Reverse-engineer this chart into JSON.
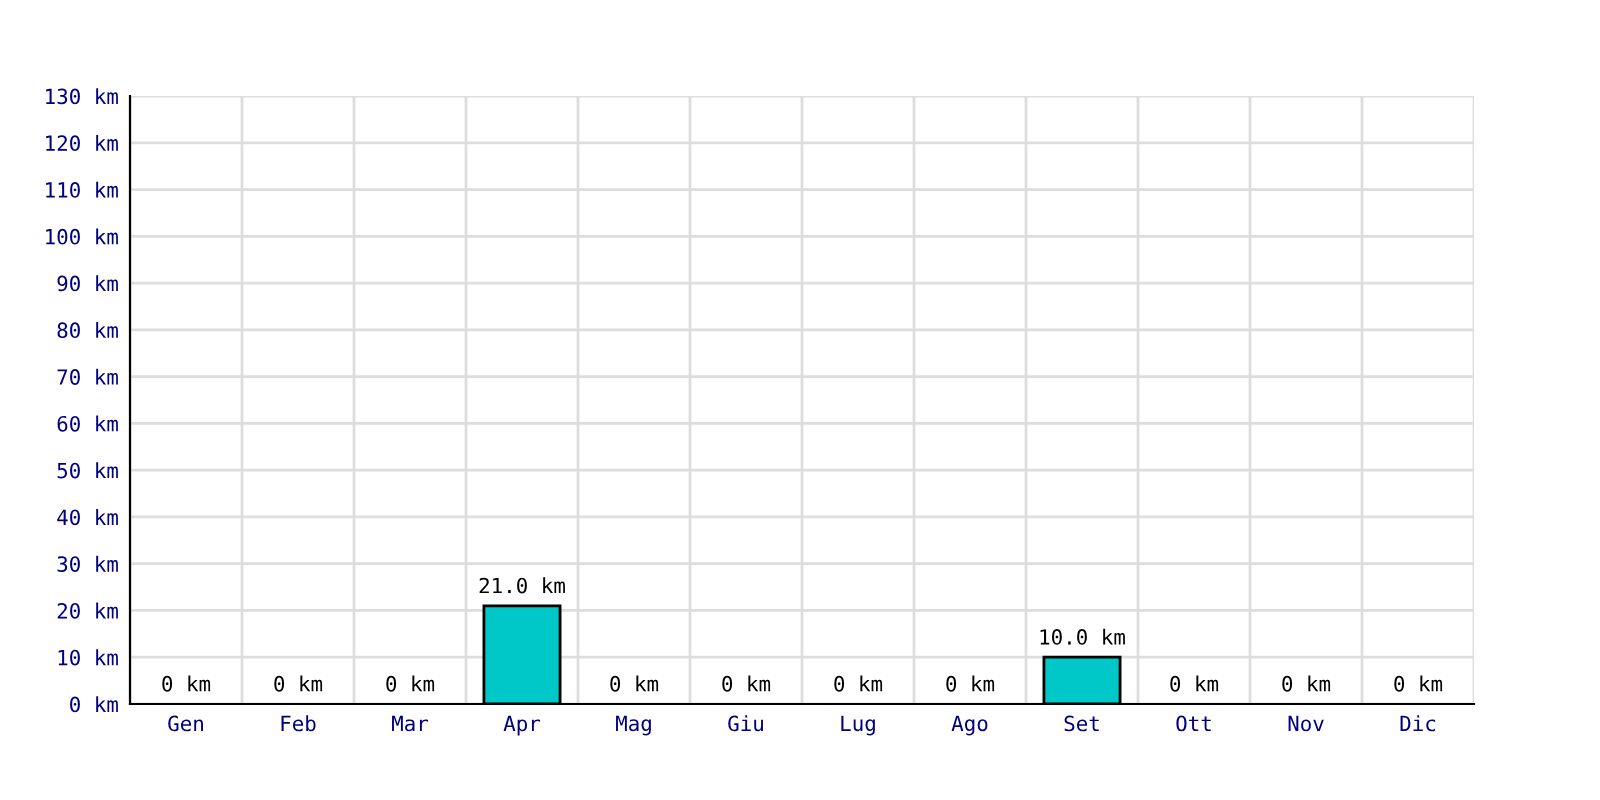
{
  "chart_data": {
    "type": "bar",
    "categories": [
      "Gen",
      "Feb",
      "Mar",
      "Apr",
      "Mag",
      "Giu",
      "Lug",
      "Ago",
      "Set",
      "Ott",
      "Nov",
      "Dic"
    ],
    "values": [
      0,
      0,
      0,
      21,
      0,
      0,
      0,
      0,
      10,
      0,
      0,
      0
    ],
    "value_labels": [
      "0 km",
      "0 km",
      "0 km",
      "21.0 km",
      "0 km",
      "0 km",
      "0 km",
      "0 km",
      "10.0 km",
      "0 km",
      "0 km",
      "0 km"
    ],
    "color": "#00c8c8",
    "ylim": [
      0,
      130
    ],
    "yticks": [
      {
        "value": 0,
        "label": "0 km"
      },
      {
        "value": 10,
        "label": "10 km"
      },
      {
        "value": 20,
        "label": "20 km"
      },
      {
        "value": 30,
        "label": "30 km"
      },
      {
        "value": 40,
        "label": "40 km"
      },
      {
        "value": 50,
        "label": "50 km"
      },
      {
        "value": 60,
        "label": "60 km"
      },
      {
        "value": 70,
        "label": "70 km"
      },
      {
        "value": 80,
        "label": "80 km"
      },
      {
        "value": 90,
        "label": "90 km"
      },
      {
        "value": 100,
        "label": "100 km"
      },
      {
        "value": 110,
        "label": "110 km"
      },
      {
        "value": 120,
        "label": "120 km"
      },
      {
        "value": 130,
        "label": "130 km"
      }
    ],
    "grid": true
  }
}
